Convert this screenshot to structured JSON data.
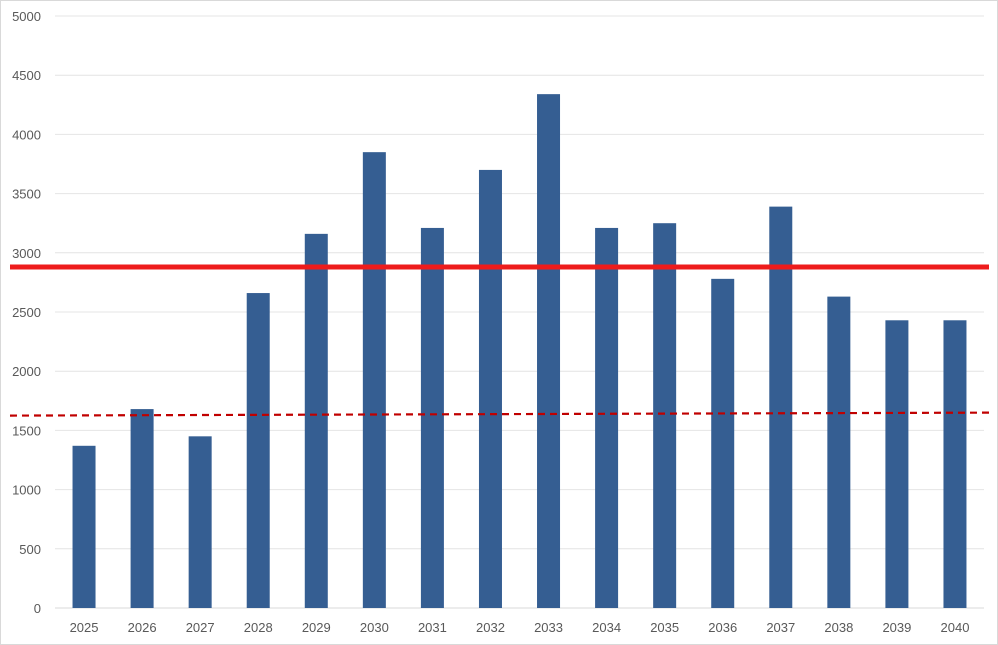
{
  "chart_data": {
    "type": "bar",
    "title": "",
    "xlabel": "",
    "ylabel": "",
    "categories": [
      "2025",
      "2026",
      "2027",
      "2028",
      "2029",
      "2030",
      "2031",
      "2032",
      "2033",
      "2034",
      "2035",
      "2036",
      "2037",
      "2038",
      "2039",
      "2040"
    ],
    "series": [
      {
        "values": [
          1370,
          1680,
          1450,
          2660,
          3160,
          3850,
          3210,
          3700,
          4340,
          3210,
          3250,
          2780,
          3390,
          2630,
          2430,
          2430
        ],
        "color": "#355e92"
      }
    ],
    "ylim": [
      0,
      5000
    ],
    "yticks": [
      0,
      500,
      1000,
      1500,
      2000,
      2500,
      3000,
      3500,
      4000,
      4500,
      5000
    ],
    "grid": true,
    "legend": "none",
    "reference_lines": [
      {
        "style": "solid",
        "color": "#ee1c1c",
        "y_start": 2880,
        "y_end": 2880
      },
      {
        "style": "dashed",
        "color": "#c00000",
        "y_start": 1625,
        "y_end": 1650
      }
    ]
  }
}
